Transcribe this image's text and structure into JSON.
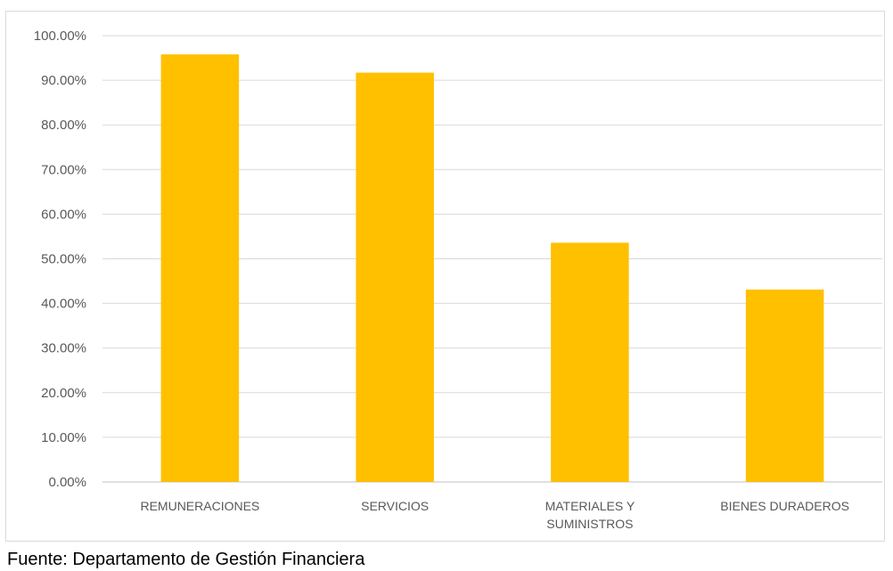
{
  "chart_data": {
    "type": "bar",
    "categories": [
      "REMUNERACIONES",
      "SERVICIOS",
      "MATERIALES Y SUMINISTROS",
      "BIENES DURADEROS"
    ],
    "category_lines": [
      [
        "REMUNERACIONES"
      ],
      [
        "SERVICIOS"
      ],
      [
        "MATERIALES Y",
        "SUMINISTROS"
      ],
      [
        "BIENES DURADEROS"
      ]
    ],
    "values": [
      95.8,
      91.7,
      53.6,
      43.1
    ],
    "value_format": "percent_2dp",
    "y_ticks": [
      "0.00%",
      "10.00%",
      "20.00%",
      "30.00%",
      "40.00%",
      "50.00%",
      "60.00%",
      "70.00%",
      "80.00%",
      "90.00%",
      "100.00%"
    ],
    "ylim": [
      0,
      100
    ],
    "grid": true,
    "legend": "none",
    "title": "",
    "xlabel": "",
    "ylabel": "",
    "bar_color": "#FFC000",
    "grid_color": "#D9D9D9",
    "label_color": "#595959"
  },
  "source_note": "Fuente: Departamento de Gestión Financiera"
}
